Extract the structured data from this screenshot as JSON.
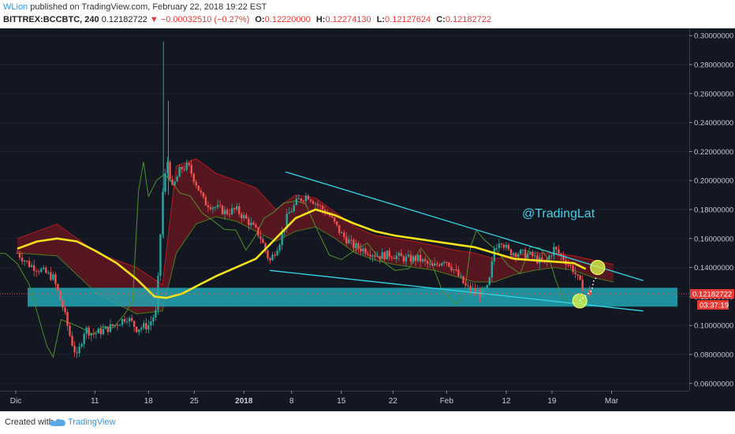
{
  "header": {
    "user": "WLion",
    "published": "published on TradingView.com, February 22, 2018 19:22 EST",
    "symbol": "BITTREX:BCCBTC, 240",
    "change": "▼ −0.00032510 (−0.27%)",
    "open_label": "O:",
    "open": "0.12220000",
    "high_label": "H:",
    "high": "0.12274130",
    "low_label": "L:",
    "low": "0.12127624",
    "close_label": "C:",
    "close": "0.12182722",
    "price_prefix": "0.12182722"
  },
  "footer": {
    "created": "Created with",
    "brand": "TradingView"
  },
  "chart_data": {
    "type": "candlestick",
    "colors": {
      "up": "#26a69a",
      "down": "#ef5350",
      "ma": "#f5e21a",
      "trendline": "#33d6e8",
      "zone": "#22a6b3",
      "cloud": "#7a1620",
      "circle": "#d9f24a",
      "bg": "#131722"
    },
    "annotation": "@TradingLat",
    "last_price": "0.12182722",
    "countdown": "03:37:19",
    "ylim": [
      0.055,
      0.305
    ],
    "y_ticks": [
      "0.30000000",
      "0.28000000",
      "0.26000000",
      "0.24000000",
      "0.22000000",
      "0.20000000",
      "0.18000000",
      "0.16000000",
      "0.14000000",
      "0.12000000",
      "0.10000000",
      "0.08000000",
      "0.06000000"
    ],
    "x_ticks": [
      "Dic",
      "11",
      "18",
      "25",
      "2018",
      "8",
      "15",
      "22",
      "Feb",
      "12",
      "19",
      "Mar"
    ],
    "zone": [
      0.113,
      0.126
    ],
    "ma_points": [
      [
        0,
        0.153
      ],
      [
        1,
        0.158
      ],
      [
        2,
        0.16
      ],
      [
        3,
        0.158
      ],
      [
        4,
        0.151
      ],
      [
        5,
        0.143
      ],
      [
        6,
        0.132
      ],
      [
        6.9,
        0.12
      ],
      [
        7.5,
        0.119
      ],
      [
        8.3,
        0.122
      ],
      [
        9,
        0.127
      ],
      [
        10,
        0.134
      ],
      [
        11,
        0.14
      ],
      [
        12,
        0.146
      ],
      [
        13,
        0.16
      ],
      [
        14,
        0.174
      ],
      [
        15,
        0.18
      ],
      [
        16,
        0.176
      ],
      [
        17,
        0.17
      ],
      [
        18,
        0.165
      ],
      [
        19,
        0.162
      ],
      [
        20,
        0.16
      ],
      [
        21,
        0.158
      ],
      [
        22,
        0.156
      ],
      [
        23,
        0.154
      ],
      [
        24,
        0.15
      ],
      [
        25,
        0.146
      ],
      [
        26,
        0.145
      ],
      [
        27,
        0.144
      ],
      [
        28,
        0.143
      ],
      [
        28.6,
        0.139
      ]
    ],
    "trend_upper": [
      [
        13.5,
        0.206
      ],
      [
        31.5,
        0.131
      ]
    ],
    "trend_lower": [
      [
        12.7,
        0.138
      ],
      [
        31.5,
        0.11
      ]
    ],
    "circles": [
      [
        29.2,
        0.14
      ],
      [
        28.3,
        0.117
      ]
    ],
    "price_path": [
      [
        0,
        0.15
      ],
      [
        0.6,
        0.142
      ],
      [
        1.2,
        0.138
      ],
      [
        1.8,
        0.133
      ],
      [
        2.3,
        0.112
      ],
      [
        2.7,
        0.09
      ],
      [
        3.0,
        0.078
      ],
      [
        3.4,
        0.098
      ],
      [
        3.8,
        0.094
      ],
      [
        4.4,
        0.097
      ],
      [
        5.0,
        0.101
      ],
      [
        5.5,
        0.106
      ],
      [
        6.0,
        0.098
      ],
      [
        6.6,
        0.1
      ],
      [
        7.0,
        0.11
      ],
      [
        7.3,
        0.19
      ],
      [
        7.55,
        0.214
      ],
      [
        7.8,
        0.194
      ],
      [
        8.2,
        0.208
      ],
      [
        8.6,
        0.21
      ],
      [
        9.0,
        0.198
      ],
      [
        9.4,
        0.185
      ],
      [
        9.9,
        0.182
      ],
      [
        10.5,
        0.178
      ],
      [
        11.0,
        0.18
      ],
      [
        11.6,
        0.172
      ],
      [
        12.2,
        0.162
      ],
      [
        12.7,
        0.144
      ],
      [
        13.2,
        0.158
      ],
      [
        13.6,
        0.176
      ],
      [
        14.1,
        0.186
      ],
      [
        14.6,
        0.19
      ],
      [
        15.2,
        0.182
      ],
      [
        15.7,
        0.176
      ],
      [
        16.3,
        0.163
      ],
      [
        16.9,
        0.155
      ],
      [
        17.5,
        0.152
      ],
      [
        18.2,
        0.148
      ],
      [
        18.8,
        0.149
      ],
      [
        19.5,
        0.146
      ],
      [
        20.2,
        0.146
      ],
      [
        20.9,
        0.14
      ],
      [
        21.5,
        0.146
      ],
      [
        22.0,
        0.138
      ],
      [
        22.6,
        0.126
      ],
      [
        23.3,
        0.122
      ],
      [
        23.7,
        0.126
      ],
      [
        24.0,
        0.153
      ],
      [
        24.3,
        0.16
      ],
      [
        24.7,
        0.151
      ],
      [
        25.3,
        0.15
      ],
      [
        25.9,
        0.148
      ],
      [
        26.5,
        0.142
      ],
      [
        27.0,
        0.153
      ],
      [
        27.5,
        0.146
      ],
      [
        28.0,
        0.138
      ],
      [
        28.3,
        0.129
      ],
      [
        28.6,
        0.124
      ],
      [
        28.9,
        0.121
      ]
    ],
    "cloud_top": [
      [
        0,
        0.16
      ],
      [
        2,
        0.17
      ],
      [
        4,
        0.15
      ],
      [
        6,
        0.14
      ],
      [
        7.3,
        0.128
      ],
      [
        8,
        0.21
      ],
      [
        9,
        0.215
      ],
      [
        10,
        0.205
      ],
      [
        11,
        0.2
      ],
      [
        12,
        0.195
      ],
      [
        13,
        0.18
      ],
      [
        14,
        0.19
      ],
      [
        15,
        0.188
      ],
      [
        16,
        0.178
      ],
      [
        17,
        0.168
      ],
      [
        18,
        0.162
      ],
      [
        19,
        0.16
      ],
      [
        20,
        0.158
      ],
      [
        21,
        0.155
      ],
      [
        22,
        0.152
      ],
      [
        23,
        0.15
      ],
      [
        24,
        0.146
      ],
      [
        25,
        0.148
      ],
      [
        26,
        0.15
      ],
      [
        27,
        0.15
      ],
      [
        28,
        0.148
      ],
      [
        29,
        0.145
      ],
      [
        30,
        0.142
      ]
    ],
    "cloud_bottom": [
      [
        0,
        0.15
      ],
      [
        2,
        0.148
      ],
      [
        4,
        0.122
      ],
      [
        6,
        0.108
      ],
      [
        7.3,
        0.11
      ],
      [
        8,
        0.15
      ],
      [
        9,
        0.17
      ],
      [
        10,
        0.175
      ],
      [
        11,
        0.172
      ],
      [
        12,
        0.165
      ],
      [
        13,
        0.158
      ],
      [
        14,
        0.165
      ],
      [
        15,
        0.168
      ],
      [
        16,
        0.16
      ],
      [
        17,
        0.15
      ],
      [
        18,
        0.145
      ],
      [
        19,
        0.142
      ],
      [
        20,
        0.14
      ],
      [
        21,
        0.138
      ],
      [
        22,
        0.134
      ],
      [
        23,
        0.13
      ],
      [
        24,
        0.13
      ],
      [
        25,
        0.135
      ],
      [
        26,
        0.138
      ],
      [
        27,
        0.14
      ],
      [
        28,
        0.138
      ],
      [
        29,
        0.133
      ],
      [
        30,
        0.13
      ]
    ]
  }
}
